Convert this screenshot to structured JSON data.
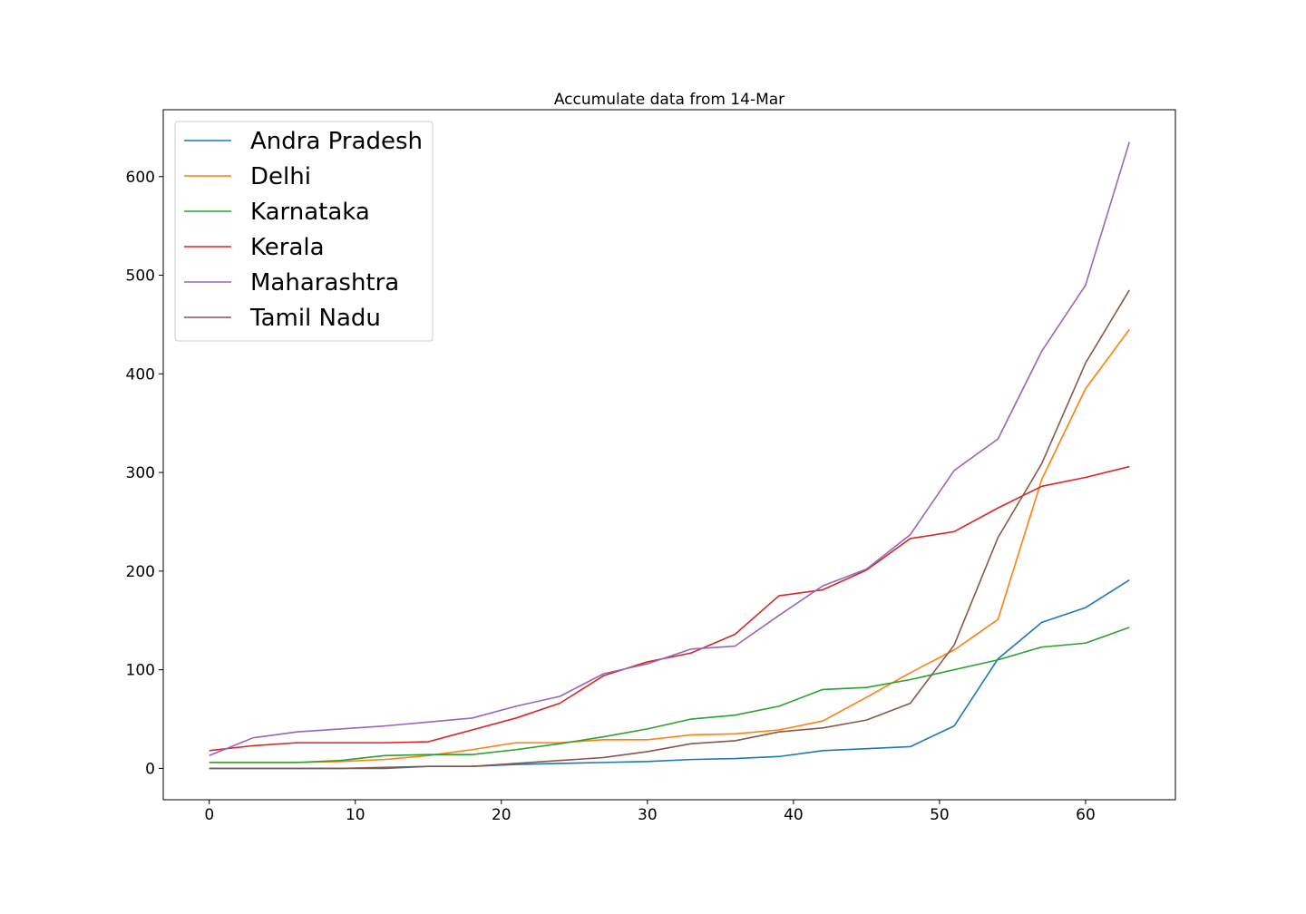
{
  "chart_data": {
    "type": "line",
    "title": "Accumulate data from 14-Mar",
    "xlabel": "",
    "ylabel": "",
    "xlim": [
      -3.15,
      66.15
    ],
    "ylim": [
      -31.8,
      667.8
    ],
    "xticks": [
      0,
      10,
      20,
      30,
      40,
      50,
      60
    ],
    "yticks": [
      0,
      100,
      200,
      300,
      400,
      500,
      600
    ],
    "grid": false,
    "legend_position": "top-left",
    "x": [
      0,
      3,
      6,
      9,
      12,
      15,
      18,
      21,
      24,
      27,
      30,
      33,
      36,
      39,
      42,
      45,
      48,
      51,
      54,
      57,
      60,
      63
    ],
    "series": [
      {
        "name": "Andra Pradesh",
        "color": "#1f77b4",
        "values": [
          0,
          0,
          0,
          0,
          0,
          2,
          2,
          4,
          5,
          6,
          7,
          9,
          10,
          12,
          18,
          20,
          22,
          43,
          111,
          148,
          163,
          191
        ]
      },
      {
        "name": "Delhi",
        "color": "#ff7f0e",
        "values": [
          6,
          6,
          6,
          7,
          9,
          13,
          19,
          26,
          26,
          29,
          29,
          34,
          35,
          39,
          48,
          72,
          97,
          120,
          151,
          293,
          385,
          445
        ]
      },
      {
        "name": "Karnataka",
        "color": "#2ca02c",
        "values": [
          6,
          6,
          6,
          8,
          13,
          14,
          14,
          19,
          25,
          32,
          40,
          50,
          54,
          63,
          80,
          82,
          90,
          100,
          110,
          123,
          127,
          143
        ]
      },
      {
        "name": "Kerala",
        "color": "#d62728",
        "values": [
          18,
          23,
          26,
          26,
          26,
          27,
          39,
          51,
          66,
          94,
          108,
          117,
          136,
          175,
          181,
          201,
          233,
          240,
          264,
          286,
          295,
          306
        ]
      },
      {
        "name": "Maharashtra",
        "color": "#9467bd",
        "values": [
          13,
          31,
          37,
          40,
          43,
          47,
          51,
          63,
          73,
          96,
          106,
          121,
          124,
          155,
          185,
          202,
          237,
          302,
          334,
          423,
          490,
          635
        ]
      },
      {
        "name": "Tamil Nadu",
        "color": "#8c564b",
        "values": [
          0,
          0,
          0,
          0,
          1,
          2,
          2,
          5,
          8,
          11,
          17,
          25,
          28,
          37,
          41,
          49,
          66,
          125,
          234,
          309,
          411,
          485
        ]
      }
    ]
  }
}
